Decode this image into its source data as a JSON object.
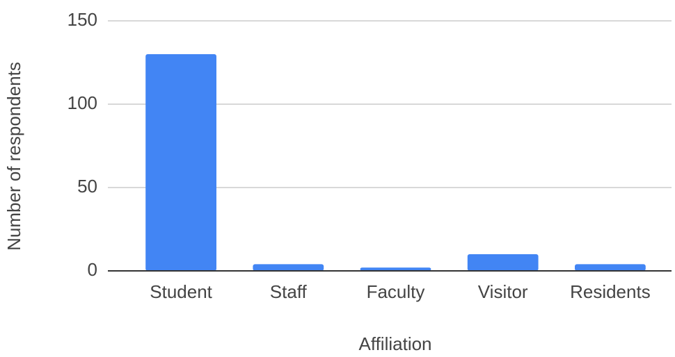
{
  "chart_data": {
    "type": "bar",
    "x_label": "Affiliation",
    "y_label": "Number of respondents",
    "categories": [
      "Student",
      "Staff",
      "Faculty",
      "Visitor",
      "Residents"
    ],
    "values": [
      130,
      4,
      2,
      10,
      4
    ],
    "color": "#4285f4",
    "ylim": [
      0,
      150
    ],
    "yticks": [
      0,
      50,
      100,
      150
    ],
    "grid": true
  }
}
